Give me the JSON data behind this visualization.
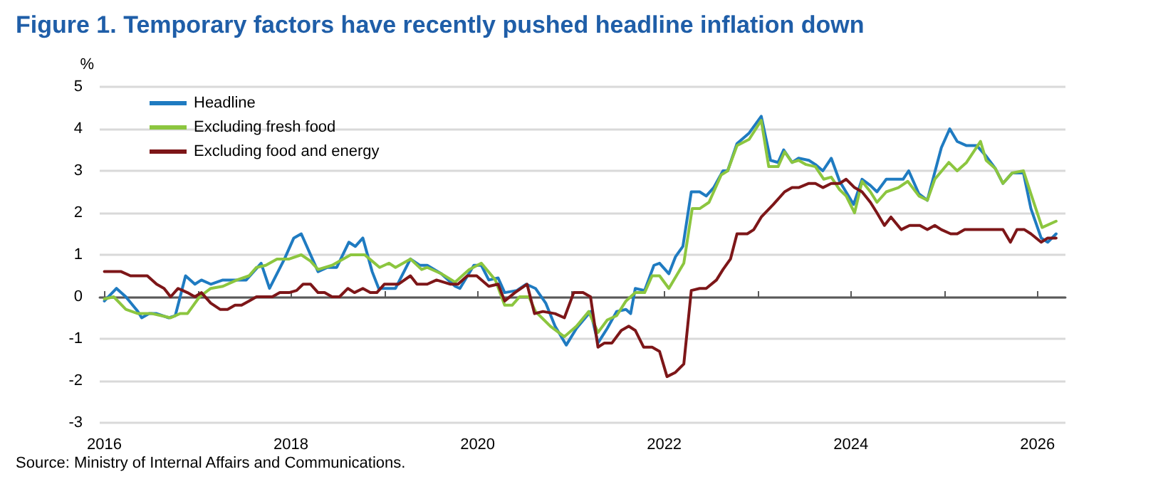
{
  "chart_data": {
    "type": "line",
    "title": "Figure 1. Temporary factors have recently pushed headline inflation down",
    "ylabel": "%",
    "annotations": [
      "Source: Ministry of Internal Affairs and Communications."
    ],
    "xlim": [
      2015.95,
      2026.3
    ],
    "xticks": [
      2016,
      {
        "value": 2017,
        "label": null
      },
      2018,
      {
        "value": 2019,
        "label": null
      },
      2020,
      {
        "value": 2021,
        "label": null
      },
      2022,
      {
        "value": 2023,
        "label": null
      },
      2024,
      {
        "value": 2025,
        "label": null
      },
      2026
    ],
    "ylim": [
      -3,
      5
    ],
    "yticks": [
      -3,
      -2,
      -1,
      0,
      1,
      2,
      3,
      4,
      5
    ],
    "grid": "y",
    "legend": "top left",
    "marker": "none",
    "line_style": "solid",
    "series": [
      {
        "name": "Headline",
        "color": "#1f7bc1",
        "x": [
          2016.0,
          2016.13,
          2016.23,
          2016.36,
          2016.4,
          2016.48,
          2016.56,
          2016.69,
          2016.76,
          2016.87,
          2016.97,
          2017.04,
          2017.14,
          2017.27,
          2017.37,
          2017.52,
          2017.68,
          2017.77,
          2017.93,
          2018.03,
          2018.11,
          2018.29,
          2018.39,
          2018.49,
          2018.62,
          2018.69,
          2018.77,
          2018.87,
          2018.94,
          2019.0,
          2019.12,
          2019.28,
          2019.38,
          2019.46,
          2019.61,
          2019.76,
          2019.81,
          2019.96,
          2020.04,
          2020.12,
          2020.22,
          2020.29,
          2020.42,
          2020.52,
          2020.62,
          2020.73,
          2020.83,
          2020.95,
          2021.06,
          2021.21,
          2021.29,
          2021.39,
          2021.49,
          2021.59,
          2021.64,
          2021.69,
          2021.79,
          2021.89,
          2021.95,
          2022.05,
          2022.12,
          2022.2,
          2022.29,
          2022.38,
          2022.45,
          2022.53,
          2022.63,
          2022.68,
          2022.78,
          2022.91,
          2023.04,
          2023.14,
          2023.22,
          2023.28,
          2023.37,
          2023.44,
          2023.55,
          2023.62,
          2023.7,
          2023.79,
          2023.88,
          2024.03,
          2024.12,
          2024.21,
          2024.28,
          2024.38,
          2024.56,
          2024.62,
          2024.73,
          2024.82,
          2024.97,
          2025.06,
          2025.14,
          2025.24,
          2025.35,
          2025.45,
          2025.55,
          2025.63,
          2025.73,
          2025.85,
          2025.93,
          2026.04,
          2026.11,
          2026.2
        ],
        "values": [
          -0.1,
          0.2,
          0,
          -0.35,
          -0.5,
          -0.4,
          -0.4,
          -0.5,
          -0.45,
          0.5,
          0.3,
          0.4,
          0.3,
          0.4,
          0.4,
          0.4,
          0.8,
          0.2,
          0.9,
          1.4,
          1.5,
          0.6,
          0.7,
          0.7,
          1.3,
          1.2,
          1.4,
          0.6,
          0.2,
          0.2,
          0.2,
          0.9,
          0.75,
          0.75,
          0.55,
          0.25,
          0.2,
          0.75,
          0.75,
          0.4,
          0.45,
          0.1,
          0.15,
          0.3,
          0.2,
          -0.15,
          -0.7,
          -1.15,
          -0.75,
          -0.35,
          -1.1,
          -0.75,
          -0.35,
          -0.3,
          -0.4,
          0.2,
          0.15,
          0.75,
          0.8,
          0.55,
          0.95,
          1.2,
          2.5,
          2.5,
          2.4,
          2.6,
          3.0,
          3.0,
          3.65,
          3.9,
          4.3,
          3.25,
          3.2,
          3.5,
          3.2,
          3.3,
          3.25,
          3.15,
          3.0,
          3.3,
          2.75,
          2.2,
          2.8,
          2.65,
          2.5,
          2.8,
          2.8,
          3.0,
          2.45,
          2.3,
          3.55,
          4.0,
          3.7,
          3.6,
          3.6,
          3.35,
          3.05,
          2.7,
          2.95,
          2.95,
          2.1,
          1.4,
          1.3,
          1.5
        ]
      },
      {
        "name": "Excluding fresh food",
        "color": "#8cc63f",
        "x": [
          2016.0,
          2016.1,
          2016.23,
          2016.36,
          2016.51,
          2016.61,
          2016.71,
          2016.81,
          2016.89,
          2017.02,
          2017.14,
          2017.27,
          2017.42,
          2017.55,
          2017.63,
          2017.73,
          2017.85,
          2017.98,
          2018.11,
          2018.21,
          2018.29,
          2018.44,
          2018.64,
          2018.79,
          2018.87,
          2018.95,
          2019.05,
          2019.12,
          2019.28,
          2019.4,
          2019.46,
          2019.61,
          2019.76,
          2019.91,
          2020.04,
          2020.19,
          2020.29,
          2020.37,
          2020.45,
          2020.55,
          2020.62,
          2020.78,
          2020.93,
          2021.06,
          2021.19,
          2021.29,
          2021.39,
          2021.49,
          2021.59,
          2021.69,
          2021.79,
          2021.87,
          2021.95,
          2022.05,
          2022.21,
          2022.3,
          2022.38,
          2022.48,
          2022.61,
          2022.68,
          2022.78,
          2022.91,
          2023.04,
          2023.12,
          2023.22,
          2023.29,
          2023.37,
          2023.44,
          2023.52,
          2023.62,
          2023.71,
          2023.79,
          2023.88,
          2023.95,
          2024.04,
          2024.12,
          2024.21,
          2024.28,
          2024.38,
          2024.51,
          2024.61,
          2024.73,
          2024.82,
          2024.9,
          2025.05,
          2025.14,
          2025.24,
          2025.39,
          2025.45,
          2025.55,
          2025.63,
          2025.73,
          2025.85,
          2025.93,
          2026.05,
          2026.2
        ],
        "values": [
          -0.05,
          0,
          -0.3,
          -0.4,
          -0.4,
          -0.45,
          -0.5,
          -0.4,
          -0.4,
          0,
          0.2,
          0.25,
          0.4,
          0.5,
          0.7,
          0.75,
          0.9,
          0.9,
          1.0,
          0.85,
          0.65,
          0.75,
          1.0,
          1.0,
          0.85,
          0.7,
          0.8,
          0.7,
          0.9,
          0.65,
          0.7,
          0.55,
          0.35,
          0.65,
          0.8,
          0.4,
          -0.2,
          -0.2,
          0,
          0,
          -0.35,
          -0.7,
          -0.95,
          -0.7,
          -0.35,
          -0.85,
          -0.55,
          -0.45,
          -0.1,
          0.1,
          0.1,
          0.5,
          0.5,
          0.2,
          0.8,
          2.1,
          2.1,
          2.25,
          2.9,
          3.0,
          3.6,
          3.75,
          4.2,
          3.1,
          3.1,
          3.45,
          3.2,
          3.25,
          3.15,
          3.1,
          2.8,
          2.85,
          2.55,
          2.4,
          2.0,
          2.75,
          2.5,
          2.25,
          2.5,
          2.6,
          2.75,
          2.4,
          2.3,
          2.8,
          3.2,
          3.0,
          3.2,
          3.7,
          3.25,
          3.05,
          2.7,
          2.95,
          3.0,
          2.45,
          1.65,
          1.8
        ]
      },
      {
        "name": "Excluding food and energy",
        "color": "#7d1618",
        "x": [
          2016.0,
          2016.18,
          2016.28,
          2016.46,
          2016.56,
          2016.64,
          2016.71,
          2016.79,
          2016.89,
          2016.97,
          2017.04,
          2017.14,
          2017.24,
          2017.32,
          2017.4,
          2017.47,
          2017.55,
          2017.63,
          2017.8,
          2017.88,
          2017.98,
          2018.06,
          2018.13,
          2018.21,
          2018.29,
          2018.36,
          2018.44,
          2018.52,
          2018.61,
          2018.68,
          2018.77,
          2018.85,
          2018.92,
          2019.0,
          2019.15,
          2019.28,
          2019.35,
          2019.46,
          2019.56,
          2019.71,
          2019.79,
          2019.89,
          2019.99,
          2020.12,
          2020.22,
          2020.29,
          2020.4,
          2020.53,
          2020.61,
          2020.7,
          2020.83,
          2020.93,
          2021.03,
          2021.13,
          2021.21,
          2021.29,
          2021.36,
          2021.44,
          2021.54,
          2021.62,
          2021.69,
          2021.78,
          2021.87,
          2021.95,
          2022.03,
          2022.12,
          2022.21,
          2022.29,
          2022.38,
          2022.45,
          2022.56,
          2022.63,
          2022.71,
          2022.78,
          2022.89,
          2022.96,
          2023.04,
          2023.17,
          2023.29,
          2023.37,
          2023.44,
          2023.55,
          2023.62,
          2023.7,
          2023.79,
          2023.88,
          2023.95,
          2024.04,
          2024.12,
          2024.21,
          2024.28,
          2024.36,
          2024.43,
          2024.54,
          2024.63,
          2024.74,
          2024.82,
          2024.9,
          2024.97,
          2025.07,
          2025.14,
          2025.22,
          2025.63,
          2025.71,
          2025.78,
          2025.86,
          2025.93,
          2026.04,
          2026.11,
          2026.2
        ],
        "values": [
          0.6,
          0.6,
          0.5,
          0.5,
          0.3,
          0.2,
          0,
          0.2,
          0.1,
          0,
          0.1,
          -0.15,
          -0.3,
          -0.3,
          -0.2,
          -0.2,
          -0.1,
          0,
          0,
          0.1,
          0.1,
          0.15,
          0.3,
          0.3,
          0.1,
          0.1,
          0,
          0,
          0.2,
          0.1,
          0.2,
          0.1,
          0.1,
          0.3,
          0.3,
          0.5,
          0.3,
          0.3,
          0.4,
          0.3,
          0.3,
          0.5,
          0.5,
          0.25,
          0.3,
          -0.1,
          0.1,
          0.3,
          -0.4,
          -0.35,
          -0.4,
          -0.5,
          0.1,
          0.1,
          0,
          -1.2,
          -1.1,
          -1.1,
          -0.8,
          -0.7,
          -0.8,
          -1.2,
          -1.2,
          -1.3,
          -1.9,
          -1.8,
          -1.6,
          0.15,
          0.2,
          0.2,
          0.4,
          0.65,
          0.9,
          1.5,
          1.5,
          1.6,
          1.9,
          2.2,
          2.5,
          2.6,
          2.6,
          2.7,
          2.7,
          2.6,
          2.7,
          2.7,
          2.8,
          2.6,
          2.5,
          2.25,
          2.0,
          1.7,
          1.9,
          1.6,
          1.7,
          1.7,
          1.6,
          1.7,
          1.6,
          1.5,
          1.5,
          1.6,
          1.6,
          1.3,
          1.6,
          1.6,
          1.5,
          1.3,
          1.4,
          1.4
        ]
      }
    ]
  }
}
